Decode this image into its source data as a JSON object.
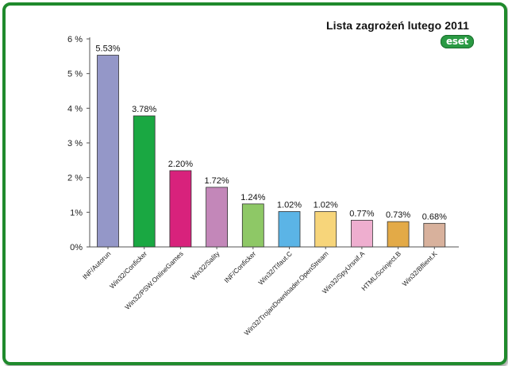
{
  "title": "Lista zagrożeń lutego 2011",
  "logo": {
    "text": "eset",
    "color": "#2a9a43"
  },
  "frame": {
    "border_color": "#1f8a2c"
  },
  "chart_data": {
    "type": "bar",
    "title": "Lista zagrożeń lutego 2011",
    "xlabel": "",
    "ylabel": "",
    "ylim": [
      0,
      6
    ],
    "yticks": [
      0,
      1,
      2,
      3,
      4,
      5,
      6
    ],
    "ytick_labels": [
      "0%",
      "1%",
      "2 %",
      "3 %",
      "4 %",
      "5 %",
      "6 %"
    ],
    "grid": false,
    "legend": "none",
    "categories": [
      "INF/Autorun",
      "Win32/Conficker",
      "Win32/PSW.OnlineGames",
      "Win32/Sality",
      "INF/Conficker",
      "Win32/Tifaut.C",
      "Win32/TrojanDownloader.OpenStream",
      "Win32/SpyUrsnif.A",
      "HTML/Scrinject.B",
      "Win32/Bflient.K"
    ],
    "values": [
      5.53,
      3.78,
      2.2,
      1.72,
      1.24,
      1.02,
      1.02,
      0.77,
      0.73,
      0.68
    ],
    "value_labels": [
      "5.53%",
      "3.78%",
      "2.20%",
      "1.72%",
      "1.24%",
      "1.02%",
      "1.02%",
      "0.77%",
      "0.73%",
      "0.68%"
    ],
    "colors": [
      "#9497c8",
      "#1aa842",
      "#d8227c",
      "#c387b9",
      "#8ec866",
      "#5bb4e6",
      "#f7d57a",
      "#eeaecf",
      "#e3aa47",
      "#d8b19c"
    ]
  }
}
